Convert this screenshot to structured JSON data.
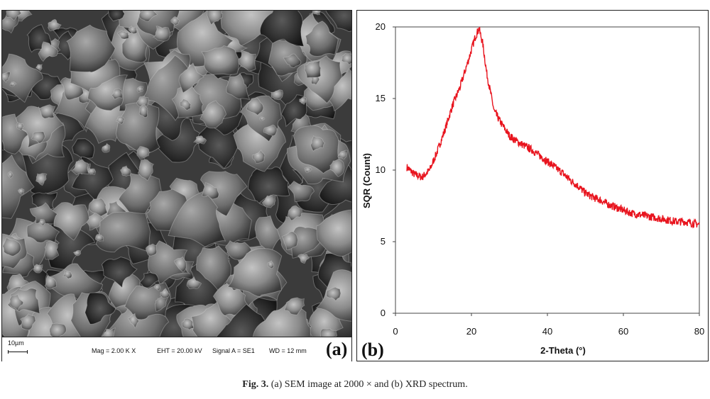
{
  "panel_a": {
    "letter": "(a)",
    "scale_label": "10µm",
    "mag": "Mag =  2.00 K X",
    "eht": "EHT = 20.00 kV",
    "signal": "Signal A = SE1",
    "wd": "WD =  12 mm"
  },
  "panel_b": {
    "letter": "(b)"
  },
  "caption": {
    "label": "Fig. 3.",
    "text": " (a) SEM image at 2000 × and (b) XRD spectrum."
  },
  "chart_data": {
    "type": "line",
    "title": "",
    "xlabel": "2-Theta (°)",
    "ylabel": "SQR (Count)",
    "xlim": [
      0,
      80
    ],
    "ylim": [
      0,
      20
    ],
    "xticks": [
      0,
      20,
      40,
      60,
      80
    ],
    "yticks": [
      0,
      5,
      10,
      15,
      20
    ],
    "grid": false,
    "line_color": "#e8141e",
    "x": [
      3,
      5,
      7,
      9,
      11,
      13,
      15,
      17,
      19,
      21,
      22,
      23,
      24,
      26,
      28,
      30,
      32,
      34,
      36,
      38,
      40,
      42,
      44,
      46,
      48,
      50,
      52,
      54,
      56,
      58,
      60,
      62,
      64,
      66,
      68,
      70,
      72,
      74,
      76,
      78,
      80
    ],
    "y": [
      10.2,
      9.7,
      9.5,
      10.0,
      11.3,
      12.8,
      14.5,
      15.8,
      17.5,
      19.3,
      19.9,
      18.8,
      16.8,
      14.1,
      13.2,
      12.4,
      12.0,
      11.7,
      11.4,
      11.0,
      10.6,
      10.2,
      9.8,
      9.3,
      8.9,
      8.4,
      8.1,
      7.9,
      7.6,
      7.4,
      7.2,
      7.0,
      6.9,
      6.8,
      6.7,
      6.6,
      6.5,
      6.4,
      6.4,
      6.3,
      6.2
    ]
  }
}
